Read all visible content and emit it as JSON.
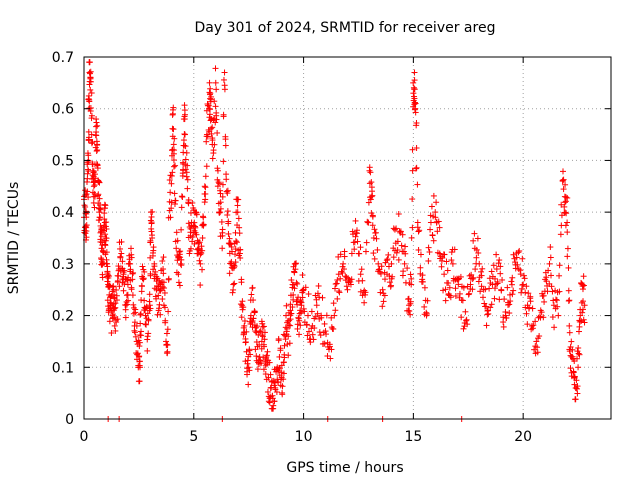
{
  "chart_data": {
    "type": "scatter",
    "title": "Day 301 of 2024, SRMTID for receiver areg",
    "xlabel": "GPS time / hours",
    "ylabel": "SRMTID / TECUs",
    "xlim": [
      0,
      24
    ],
    "ylim": [
      0,
      0.7
    ],
    "xticks": [
      0,
      5,
      10,
      15,
      20
    ],
    "xtick_labels": [
      "0",
      "5",
      "10",
      "15",
      "20"
    ],
    "yticks": [
      0,
      0.1,
      0.2,
      0.3,
      0.4,
      0.5,
      0.6,
      0.7
    ],
    "ytick_labels": [
      "0",
      "0.1",
      "0.2",
      "0.3",
      "0.4",
      "0.5",
      "0.6",
      "0.7"
    ],
    "grid": true,
    "marker": "+",
    "color": "#ff0000",
    "series": [
      {
        "name": "SRMTID",
        "points": [
          [
            0.0,
            0.39
          ],
          [
            0.05,
            0.41
          ],
          [
            0.1,
            0.37
          ],
          [
            0.15,
            0.44
          ],
          [
            0.2,
            0.5
          ],
          [
            0.22,
            0.6
          ],
          [
            0.25,
            0.67
          ],
          [
            0.3,
            0.66
          ],
          [
            0.35,
            0.55
          ],
          [
            0.4,
            0.48
          ],
          [
            0.45,
            0.45
          ],
          [
            0.5,
            0.43
          ],
          [
            0.55,
            0.58
          ],
          [
            0.6,
            0.52
          ],
          [
            0.65,
            0.46
          ],
          [
            0.7,
            0.4
          ],
          [
            0.75,
            0.36
          ],
          [
            0.8,
            0.33
          ],
          [
            0.85,
            0.3
          ],
          [
            0.9,
            0.37
          ],
          [
            0.95,
            0.38
          ],
          [
            1.0,
            0.35
          ],
          [
            1.05,
            0.3
          ],
          [
            1.1,
            0.26
          ],
          [
            1.15,
            0.24
          ],
          [
            1.2,
            0.22
          ],
          [
            1.3,
            0.2
          ],
          [
            1.35,
            0.25
          ],
          [
            1.4,
            0.18
          ],
          [
            1.5,
            0.23
          ],
          [
            1.6,
            0.29
          ],
          [
            1.7,
            0.32
          ],
          [
            1.8,
            0.28
          ],
          [
            1.9,
            0.22
          ],
          [
            2.0,
            0.26
          ],
          [
            2.1,
            0.3
          ],
          [
            2.2,
            0.27
          ],
          [
            2.3,
            0.18
          ],
          [
            2.4,
            0.15
          ],
          [
            2.5,
            0.12
          ],
          [
            2.55,
            0.1
          ],
          [
            2.6,
            0.23
          ],
          [
            2.7,
            0.27
          ],
          [
            2.8,
            0.2
          ],
          [
            2.9,
            0.16
          ],
          [
            3.0,
            0.22
          ],
          [
            3.05,
            0.4
          ],
          [
            3.1,
            0.35
          ],
          [
            3.2,
            0.3
          ],
          [
            3.3,
            0.25
          ],
          [
            3.4,
            0.21
          ],
          [
            3.5,
            0.26
          ],
          [
            3.6,
            0.29
          ],
          [
            3.7,
            0.19
          ],
          [
            3.8,
            0.13
          ],
          [
            3.9,
            0.42
          ],
          [
            4.0,
            0.47
          ],
          [
            4.05,
            0.59
          ],
          [
            4.1,
            0.52
          ],
          [
            4.2,
            0.33
          ],
          [
            4.3,
            0.28
          ],
          [
            4.4,
            0.3
          ],
          [
            4.5,
            0.47
          ],
          [
            4.55,
            0.58
          ],
          [
            4.6,
            0.55
          ],
          [
            4.7,
            0.49
          ],
          [
            4.8,
            0.32
          ],
          [
            4.9,
            0.38
          ],
          [
            5.0,
            0.36
          ],
          [
            5.1,
            0.4
          ],
          [
            5.2,
            0.33
          ],
          [
            5.3,
            0.3
          ],
          [
            5.4,
            0.35
          ],
          [
            5.5,
            0.45
          ],
          [
            5.6,
            0.55
          ],
          [
            5.7,
            0.6
          ],
          [
            5.75,
            0.63
          ],
          [
            5.8,
            0.58
          ],
          [
            5.9,
            0.52
          ],
          [
            6.0,
            0.65
          ],
          [
            6.1,
            0.48
          ],
          [
            6.2,
            0.4
          ],
          [
            6.3,
            0.36
          ],
          [
            6.4,
            0.67
          ],
          [
            6.5,
            0.44
          ],
          [
            6.6,
            0.34
          ],
          [
            6.7,
            0.3
          ],
          [
            6.8,
            0.26
          ],
          [
            6.9,
            0.36
          ],
          [
            7.0,
            0.4
          ],
          [
            7.1,
            0.32
          ],
          [
            7.2,
            0.22
          ],
          [
            7.3,
            0.18
          ],
          [
            7.4,
            0.13
          ],
          [
            7.5,
            0.1
          ],
          [
            7.6,
            0.2
          ],
          [
            7.7,
            0.23
          ],
          [
            7.8,
            0.17
          ],
          [
            7.9,
            0.14
          ],
          [
            8.0,
            0.12
          ],
          [
            8.1,
            0.15
          ],
          [
            8.2,
            0.14
          ],
          [
            8.3,
            0.12
          ],
          [
            8.4,
            0.08
          ],
          [
            8.5,
            0.06
          ],
          [
            8.6,
            0.04
          ],
          [
            8.7,
            0.07
          ],
          [
            8.8,
            0.1
          ],
          [
            8.9,
            0.12
          ],
          [
            9.0,
            0.08
          ],
          [
            9.1,
            0.11
          ],
          [
            9.2,
            0.2
          ],
          [
            9.3,
            0.16
          ],
          [
            9.4,
            0.21
          ],
          [
            9.5,
            0.26
          ],
          [
            9.6,
            0.3
          ],
          [
            9.7,
            0.23
          ],
          [
            9.8,
            0.19
          ],
          [
            9.9,
            0.22
          ],
          [
            10.0,
            0.25
          ],
          [
            10.2,
            0.2
          ],
          [
            10.4,
            0.18
          ],
          [
            10.6,
            0.22
          ],
          [
            10.8,
            0.2
          ],
          [
            11.0,
            0.17
          ],
          [
            11.2,
            0.14
          ],
          [
            11.4,
            0.2
          ],
          [
            11.6,
            0.28
          ],
          [
            11.8,
            0.3
          ],
          [
            12.0,
            0.25
          ],
          [
            12.2,
            0.32
          ],
          [
            12.4,
            0.36
          ],
          [
            12.6,
            0.28
          ],
          [
            12.8,
            0.24
          ],
          [
            13.0,
            0.48
          ],
          [
            13.1,
            0.43
          ],
          [
            13.2,
            0.35
          ],
          [
            13.4,
            0.3
          ],
          [
            13.6,
            0.25
          ],
          [
            13.8,
            0.28
          ],
          [
            14.0,
            0.3
          ],
          [
            14.2,
            0.34
          ],
          [
            14.4,
            0.36
          ],
          [
            14.6,
            0.3
          ],
          [
            14.8,
            0.22
          ],
          [
            14.9,
            0.26
          ],
          [
            15.0,
            0.63
          ],
          [
            15.05,
            0.67
          ],
          [
            15.1,
            0.61
          ],
          [
            15.2,
            0.38
          ],
          [
            15.4,
            0.27
          ],
          [
            15.6,
            0.2
          ],
          [
            15.8,
            0.38
          ],
          [
            16.0,
            0.39
          ],
          [
            16.2,
            0.32
          ],
          [
            16.4,
            0.28
          ],
          [
            16.6,
            0.24
          ],
          [
            16.8,
            0.3
          ],
          [
            17.0,
            0.27
          ],
          [
            17.2,
            0.23
          ],
          [
            17.4,
            0.19
          ],
          [
            17.6,
            0.26
          ],
          [
            17.8,
            0.33
          ],
          [
            18.0,
            0.3
          ],
          [
            18.2,
            0.25
          ],
          [
            18.4,
            0.21
          ],
          [
            18.6,
            0.26
          ],
          [
            18.8,
            0.29
          ],
          [
            19.0,
            0.25
          ],
          [
            19.2,
            0.2
          ],
          [
            19.4,
            0.24
          ],
          [
            19.6,
            0.31
          ],
          [
            19.8,
            0.29
          ],
          [
            20.0,
            0.26
          ],
          [
            20.2,
            0.22
          ],
          [
            20.4,
            0.18
          ],
          [
            20.6,
            0.15
          ],
          [
            20.8,
            0.21
          ],
          [
            21.0,
            0.27
          ],
          [
            21.2,
            0.3
          ],
          [
            21.4,
            0.22
          ],
          [
            21.6,
            0.2
          ],
          [
            21.8,
            0.46
          ],
          [
            21.9,
            0.43
          ],
          [
            22.0,
            0.38
          ],
          [
            22.1,
            0.18
          ],
          [
            22.2,
            0.12
          ],
          [
            22.3,
            0.09
          ],
          [
            22.4,
            0.06
          ],
          [
            22.5,
            0.1
          ],
          [
            22.6,
            0.2
          ],
          [
            22.7,
            0.26
          ],
          [
            22.8,
            0.22
          ]
        ]
      }
    ],
    "zero_points_x": [
      1.1,
      1.6,
      6.3,
      11.1,
      13.6,
      17.2
    ]
  }
}
